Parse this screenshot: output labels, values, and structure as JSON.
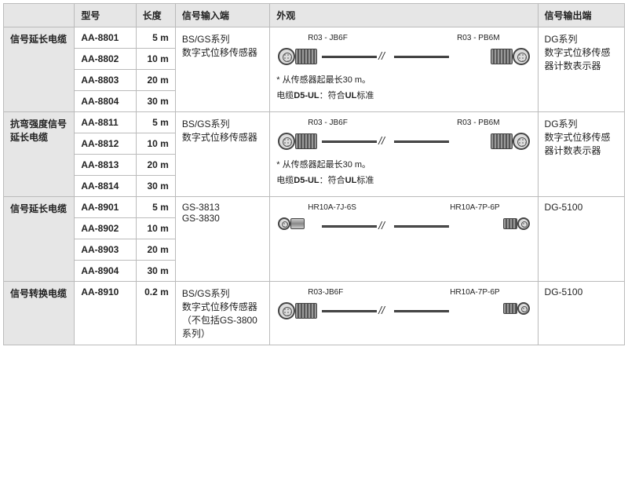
{
  "headers": {
    "category": "",
    "model": "型号",
    "length": "长度",
    "input": "信号输入端",
    "appearance": "外观",
    "output": "信号输出端"
  },
  "groups": [
    {
      "category": "信号延长电缆",
      "input": [
        "BS/GS系列",
        "数字式位移传感器"
      ],
      "output": [
        "DG系列",
        "数字式位移传感器计数表示器"
      ],
      "appearance": {
        "left_label": "R03 - JB6F",
        "right_label": "R03 - PB6M",
        "size": "large",
        "note1": "* 从传感器起最长30 m。",
        "note2_prefix": "电缆",
        "note2_bold": "D5-UL",
        "note2_mid": "：符合",
        "note2_bold2": "UL",
        "note2_suffix": "标准"
      },
      "rows": [
        {
          "model": "AA-8801",
          "length": "5 m"
        },
        {
          "model": "AA-8802",
          "length": "10 m"
        },
        {
          "model": "AA-8803",
          "length": "20 m"
        },
        {
          "model": "AA-8804",
          "length": "30 m"
        }
      ]
    },
    {
      "category": "抗弯强度信号延长电缆",
      "input": [
        "BS/GS系列",
        "数字式位移传感器"
      ],
      "output": [
        "DG系列",
        "数字式位移传感器计数表示器"
      ],
      "appearance": {
        "left_label": "R03 - JB6F",
        "right_label": "R03 - PB6M",
        "size": "large",
        "note1": "* 从传感器起最长30 m。",
        "note2_prefix": "电缆",
        "note2_bold": "D5-UL",
        "note2_mid": "：符合",
        "note2_bold2": "UL",
        "note2_suffix": "标准"
      },
      "rows": [
        {
          "model": "AA-8811",
          "length": "5 m"
        },
        {
          "model": "AA-8812",
          "length": "10 m"
        },
        {
          "model": "AA-8813",
          "length": "20 m"
        },
        {
          "model": "AA-8814",
          "length": "30 m"
        }
      ]
    },
    {
      "category": "信号延长电缆",
      "input": [
        "GS-3813",
        "GS-3830"
      ],
      "output": [
        "DG-5100"
      ],
      "appearance": {
        "left_label": "HR10A-7J-6S",
        "right_label": "HR10A-7P-6P",
        "size": "small"
      },
      "rows": [
        {
          "model": "AA-8901",
          "length": "5 m"
        },
        {
          "model": "AA-8902",
          "length": "10 m"
        },
        {
          "model": "AA-8903",
          "length": "20 m"
        },
        {
          "model": "AA-8904",
          "length": "30 m"
        }
      ]
    },
    {
      "category": "信号转换电缆",
      "input": [
        "BS/GS系列",
        "数字式位移传感器",
        "（不包括GS-3800系列）"
      ],
      "output": [
        "DG-5100"
      ],
      "appearance": {
        "left_label": "R03-JB6F",
        "right_label": "HR10A-7P-6P",
        "size": "mixed"
      },
      "rows": [
        {
          "model": "AA-8910",
          "length": "0.2 m"
        }
      ]
    }
  ]
}
